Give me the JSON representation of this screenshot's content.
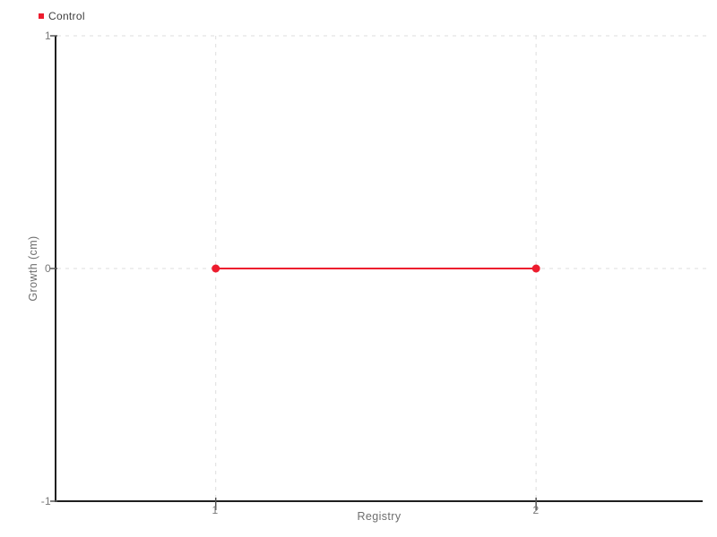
{
  "colors": {
    "background": "#ffffff",
    "accent": "#ed1c2e",
    "grid": "#dcdcdc",
    "axis": "#1f1f1f",
    "tick": "#555555",
    "tick_text": "#777777",
    "label_text": "#6e6e6e",
    "legend_text": "#3d3d3d"
  },
  "chart_data": {
    "type": "line",
    "title": "",
    "xlabel": "Registry",
    "ylabel": "Growth (cm)",
    "xlim": [
      0.5,
      2.52
    ],
    "ylim": [
      -1,
      1
    ],
    "xticks": [
      1,
      2
    ],
    "xtick_labels": [
      "1",
      "2"
    ],
    "yticks": [
      1,
      0,
      -1
    ],
    "ytick_labels": [
      "1",
      "0",
      "-1"
    ],
    "grid": "dashed",
    "legend_position": "top-left",
    "series": [
      {
        "name": "Control",
        "x": [
          1,
          2
        ],
        "y": [
          0,
          0
        ],
        "marker": "circle",
        "marker_size": 9,
        "line_width": 2
      }
    ]
  }
}
